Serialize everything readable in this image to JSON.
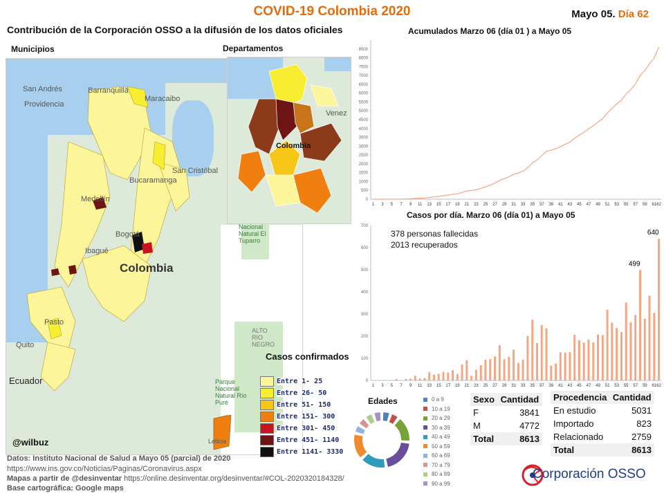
{
  "header": {
    "title": "COVID-19 Colombia 2020",
    "date_prefix": "Mayo 05.",
    "day": "Día 62",
    "subtitle": "Contribución de la Corporación OSSO a la difusión de los datos oficiales"
  },
  "maps": {
    "municipios_label": "Municipios",
    "departamentos_label": "Departamentos",
    "place_labels": [
      "San Andrés",
      "Providencia",
      "Barranquilla",
      "Maracaibo",
      "Bucaramanga",
      "San Cristóbal",
      "Medellín",
      "Bogotá",
      "Ibagué",
      "Colombia",
      "Pasto",
      "Quito",
      "Ecuador",
      "Venez"
    ],
    "park_labels": [
      "Nacional Natural El Tuparro",
      "ALTO RIO NEGRO",
      "Parque Nacional Natural Río Puré",
      "Leticia"
    ],
    "dept_map_label": "Colombia",
    "credit": "@wilbuz",
    "legend_title": "Casos confirmados",
    "legend": [
      {
        "label": "Entre 1- 25",
        "color": "#fdf59a"
      },
      {
        "label": "Entre 26- 50",
        "color": "#f7ee32"
      },
      {
        "label": "Entre 51- 150",
        "color": "#f5c518"
      },
      {
        "label": "Entre 151- 300",
        "color": "#f07f0f"
      },
      {
        "label": "Entre 301- 450",
        "color": "#c8141e"
      },
      {
        "label": "Entre 451- 1140",
        "color": "#6e1414"
      },
      {
        "label": "Entre 1141- 3330",
        "color": "#111111"
      }
    ]
  },
  "footer": {
    "line1": "Datos: Instituto Nacional de Salud a Mayo 05 (parcial) de 2020",
    "line2": "https://www.ins.gov.co/Noticias/Paginas/Coronavirus.aspx",
    "line3_bold": "Mapas a partir de @desinventar",
    "line3_url": "https://online.desinventar.org/desinventar/#COL-2020320184328/",
    "line4": "Base cartográfica: Google maps"
  },
  "annotations": {
    "fallecidas": "378 personas fallecidas",
    "recuperados": "2013 recuperados",
    "label_499": "499",
    "label_640": "640"
  },
  "edades": {
    "title": "Edades",
    "groups": [
      {
        "label": "0 a 9",
        "color": "#4f81bd"
      },
      {
        "label": "10 a 19",
        "color": "#c0504d"
      },
      {
        "label": "20 a 29",
        "color": "#77a23a"
      },
      {
        "label": "30 a 39",
        "color": "#6a4d9b"
      },
      {
        "label": "40 a 49",
        "color": "#2e9cba"
      },
      {
        "label": "50 a 59",
        "color": "#f08a2c"
      },
      {
        "label": "60 a 69",
        "color": "#93b3da"
      },
      {
        "label": "70 a 79",
        "color": "#d9938f"
      },
      {
        "label": "80 a 89",
        "color": "#b3cb86"
      },
      {
        "label": "90 a 99",
        "color": "#a892c4"
      }
    ]
  },
  "sexo": {
    "headers": [
      "Sexo",
      "Cantidad"
    ],
    "rows": [
      [
        "F",
        "3841"
      ],
      [
        "M",
        "4772"
      ]
    ],
    "total": [
      "Total",
      "8613"
    ]
  },
  "procedencia": {
    "headers": [
      "Procedencia",
      "Cantidad"
    ],
    "rows": [
      [
        "En estudio",
        "5031"
      ],
      [
        "Importado",
        "823"
      ],
      [
        "Relacionado",
        "2759"
      ]
    ],
    "total": [
      "Total",
      "8613"
    ]
  },
  "brand": {
    "name": "Corporación OSSO"
  },
  "chart_data": [
    {
      "type": "line",
      "title": "Acumulados  Marzo 06 (día 01 ) a Mayo 05",
      "x_ticks": [
        1,
        3,
        5,
        7,
        9,
        11,
        13,
        15,
        17,
        19,
        21,
        23,
        25,
        27,
        29,
        31,
        33,
        35,
        37,
        39,
        41,
        43,
        45,
        47,
        49,
        51,
        53,
        55,
        57,
        59,
        61,
        62
      ],
      "ylim": [
        0,
        9000
      ],
      "y_ticks": [
        0,
        500,
        1000,
        1500,
        2000,
        2500,
        3000,
        3500,
        4000,
        4500,
        5000,
        5500,
        6000,
        6500,
        7000,
        7500,
        8000,
        8500
      ],
      "color": "#f4a582",
      "values": [
        1,
        1,
        1,
        3,
        3,
        9,
        9,
        16,
        24,
        45,
        54,
        65,
        102,
        128,
        158,
        196,
        231,
        277,
        306,
        378,
        470,
        491,
        539,
        608,
        702,
        798,
        906,
        1065,
        1161,
        1267,
        1406,
        1485,
        1579,
        1780,
        2054,
        2223,
        2473,
        2709,
        2776,
        2852,
        2979,
        3105,
        3233,
        3439,
        3621,
        3792,
        3977,
        4149,
        4356,
        4561,
        4881,
        5142,
        5379,
        5597,
        5949,
        6211,
        6507,
        7006,
        7285,
        7668,
        7973,
        8613
      ]
    },
    {
      "type": "bar",
      "title": "Casos por día. Marzo 06 (día 01) a Mayo 05",
      "x_ticks": [
        1,
        3,
        5,
        7,
        9,
        11,
        13,
        15,
        17,
        19,
        21,
        23,
        25,
        27,
        29,
        31,
        33,
        35,
        37,
        39,
        41,
        43,
        45,
        47,
        49,
        51,
        53,
        55,
        57,
        59,
        61,
        62
      ],
      "ylim": [
        0,
        700
      ],
      "y_ticks": [
        0,
        100,
        200,
        300,
        400,
        500,
        600,
        700
      ],
      "color": "#f4a582",
      "values": [
        1,
        0,
        0,
        2,
        0,
        6,
        0,
        7,
        8,
        21,
        9,
        11,
        37,
        26,
        30,
        38,
        35,
        46,
        29,
        72,
        92,
        21,
        48,
        69,
        94,
        96,
        108,
        159,
        96,
        106,
        139,
        79,
        94,
        201,
        274,
        169,
        250,
        236,
        67,
        76,
        127,
        126,
        128,
        206,
        182,
        171,
        185,
        172,
        207,
        205,
        320,
        261,
        237,
        218,
        352,
        262,
        296,
        499,
        279,
        383,
        305,
        640
      ]
    }
  ]
}
